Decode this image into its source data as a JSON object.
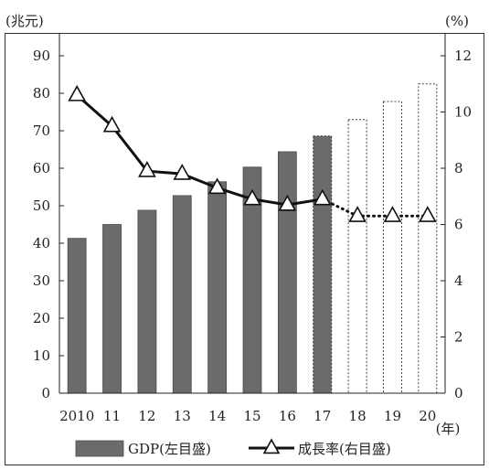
{
  "chart_data": {
    "type": "bar+line",
    "categories": [
      "2010",
      "11",
      "12",
      "13",
      "14",
      "15",
      "16",
      "17",
      "18",
      "19",
      "20"
    ],
    "x_unit": "(年)",
    "y_left": {
      "unit": "(兆元)",
      "min": 0,
      "max": 90,
      "ticks": [
        0,
        10,
        20,
        30,
        40,
        50,
        60,
        70,
        80,
        90
      ]
    },
    "y_right": {
      "unit": "(%)",
      "min": 0,
      "max": 12,
      "ticks": [
        0,
        2,
        4,
        6,
        8,
        10,
        12
      ]
    },
    "series": [
      {
        "name": "GDP(左目盛)",
        "kind": "bar",
        "axis": "left",
        "values": [
          41.3,
          45.0,
          48.8,
          52.7,
          56.4,
          60.3,
          64.4,
          68.6,
          73.0,
          77.8,
          82.5
        ],
        "styles": [
          "actual",
          "actual",
          "actual",
          "actual",
          "actual",
          "actual",
          "actual",
          "estimate",
          "forecast",
          "forecast",
          "forecast"
        ],
        "colors": {
          "actual": "#6b6b6b",
          "estimate": "#6b6b6b",
          "forecast": "#ffffff"
        }
      },
      {
        "name": "成長率(右目盛)",
        "kind": "line",
        "axis": "right",
        "values": [
          10.6,
          9.5,
          7.9,
          7.8,
          7.3,
          6.9,
          6.7,
          6.9,
          6.3,
          6.3,
          6.3
        ],
        "solid_until_index": 7,
        "marker": "triangle",
        "color": "#111111"
      }
    ],
    "legend": {
      "position": "bottom",
      "items": [
        {
          "label": "GDP(左目盛)",
          "symbol": "bar"
        },
        {
          "label": "成長率(右目盛)",
          "symbol": "line-triangle"
        }
      ]
    },
    "grid": false
  }
}
